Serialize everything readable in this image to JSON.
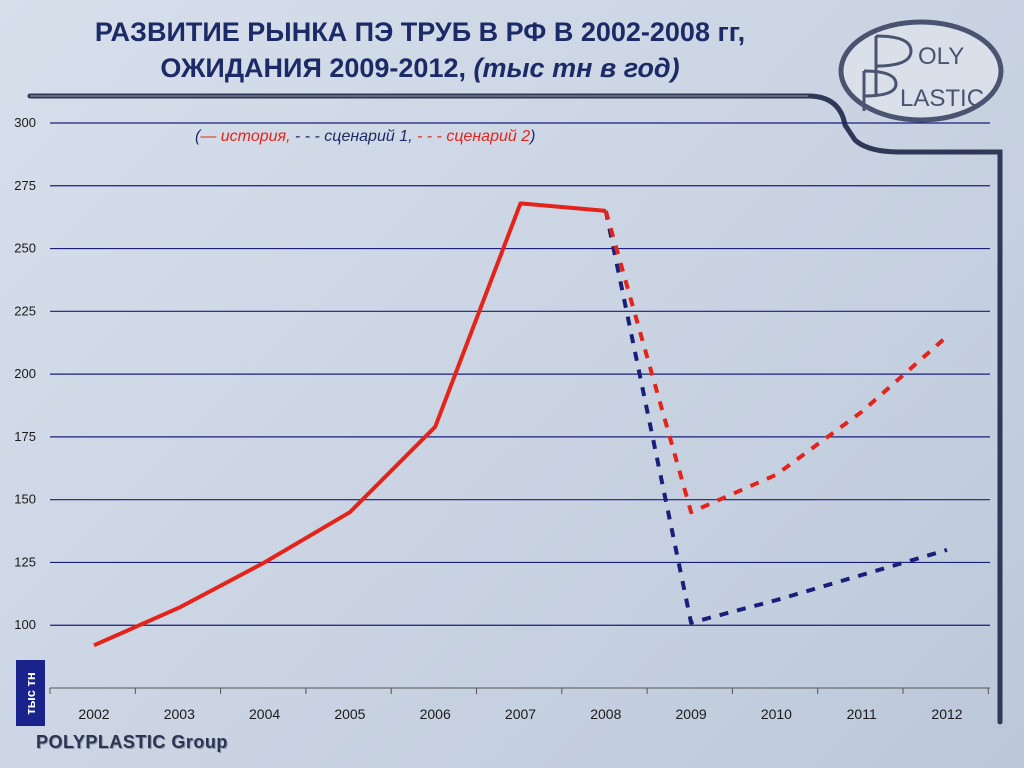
{
  "title": {
    "line1": "РАЗВИТИЕ РЫНКА ПЭ ТРУБ В РФ В 2002-2008 гг,",
    "line2_main": "ОЖИДАНИЯ 2009-2012,",
    "line2_unit": "(тыс тн в год)"
  },
  "logo": {
    "top": "OLY",
    "bottom": "LASTIC"
  },
  "footer": "POLYPLASTIC Group",
  "legend": {
    "open": "(",
    "history_swatch": "—",
    "history": "история,",
    "s1_swatch": "- - -",
    "s1": "сценарий 1,",
    "s2_swatch": "- - -",
    "s2": "сценарий 2",
    "close": ")"
  },
  "colors": {
    "history": "#e4241b",
    "scenario1": "#1a1f7a",
    "scenario2": "#e4241b",
    "grid": "#1a1f7a"
  },
  "chart_data": {
    "type": "line",
    "categories": [
      "2002",
      "2003",
      "2004",
      "2005",
      "2006",
      "2007",
      "2008",
      "2009",
      "2010",
      "2011",
      "2012"
    ],
    "ylabel": "тыс тн",
    "y_ticks": [
      100,
      125,
      150,
      175,
      200,
      225,
      250,
      275,
      300
    ],
    "ylim": [
      75,
      300
    ],
    "grid": true,
    "series": [
      {
        "name": "история",
        "style": "solid",
        "points": [
          [
            2002,
            92
          ],
          [
            2003,
            107
          ],
          [
            2004,
            125
          ],
          [
            2005,
            145
          ],
          [
            2006,
            179
          ],
          [
            2007,
            268
          ],
          [
            2008,
            265
          ]
        ]
      },
      {
        "name": "сценарий 1",
        "style": "dashed",
        "points": [
          [
            2008,
            265
          ],
          [
            2009,
            101
          ],
          [
            2010,
            110
          ],
          [
            2011,
            120
          ],
          [
            2012,
            130
          ]
        ]
      },
      {
        "name": "сценарий 2",
        "style": "dashed",
        "points": [
          [
            2008,
            265
          ],
          [
            2009,
            145
          ],
          [
            2010,
            160
          ],
          [
            2011,
            185
          ],
          [
            2012,
            215
          ]
        ]
      }
    ]
  }
}
